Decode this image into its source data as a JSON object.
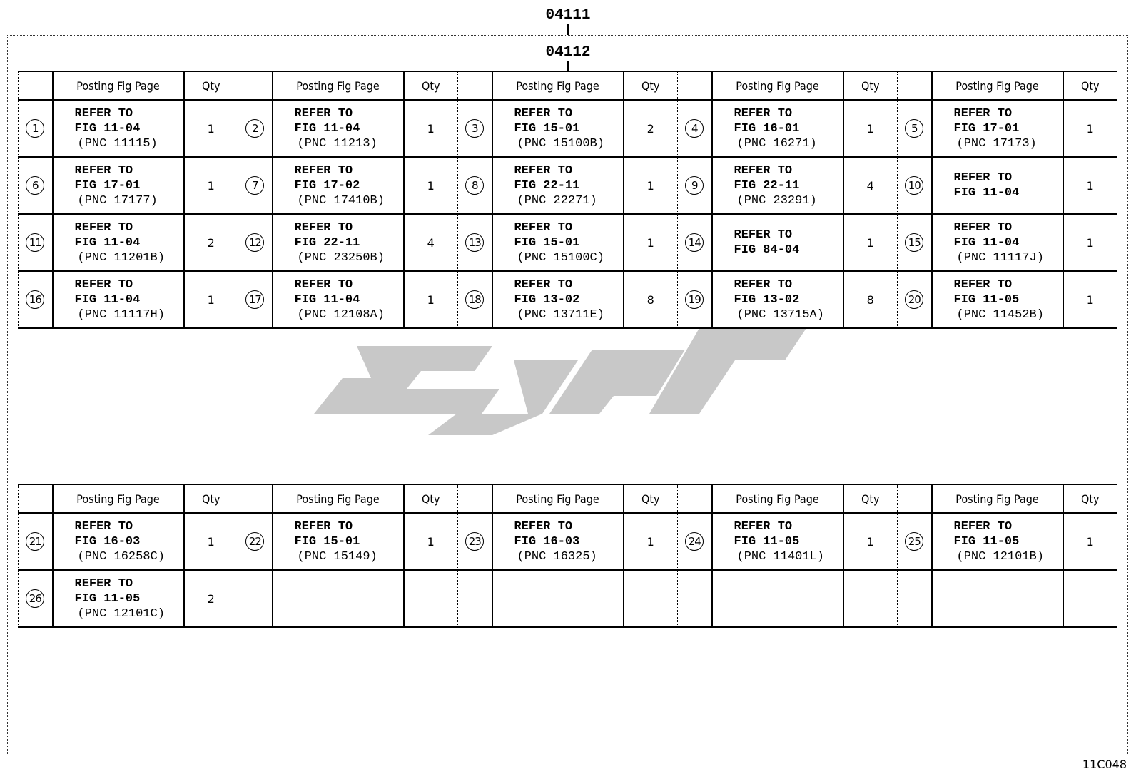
{
  "labels": {
    "top": "04111",
    "inner": "04112",
    "figure_code": "11C048"
  },
  "header": {
    "posting": "Posting Fig Page",
    "qty": "Qty"
  },
  "table1": [
    [
      {
        "n": "1",
        "l1": "REFER TO",
        "l2": "FIG 11-04",
        "l3": "(PNC 11115)",
        "q": "1"
      },
      {
        "n": "2",
        "l1": "REFER TO",
        "l2": "FIG 11-04",
        "l3": "(PNC 11213)",
        "q": "1"
      },
      {
        "n": "3",
        "l1": "REFER TO",
        "l2": "FIG 15-01",
        "l3": "(PNC 15100B)",
        "q": "2"
      },
      {
        "n": "4",
        "l1": "REFER TO",
        "l2": "FIG 16-01",
        "l3": "(PNC 16271)",
        "q": "1"
      },
      {
        "n": "5",
        "l1": "REFER TO",
        "l2": "FIG 17-01",
        "l3": "(PNC 17173)",
        "q": "1"
      }
    ],
    [
      {
        "n": "6",
        "l1": "REFER TO",
        "l2": "FIG 17-01",
        "l3": "(PNC 17177)",
        "q": "1"
      },
      {
        "n": "7",
        "l1": "REFER TO",
        "l2": "FIG 17-02",
        "l3": "(PNC 17410B)",
        "q": "1"
      },
      {
        "n": "8",
        "l1": "REFER TO",
        "l2": "FIG 22-11",
        "l3": "(PNC 22271)",
        "q": "1"
      },
      {
        "n": "9",
        "l1": "REFER TO",
        "l2": "FIG 22-11",
        "l3": "(PNC 23291)",
        "q": "4"
      },
      {
        "n": "10",
        "l1": "REFER TO",
        "l2": "FIG 11-04",
        "l3": "",
        "q": "1"
      }
    ],
    [
      {
        "n": "11",
        "l1": "REFER TO",
        "l2": "FIG 11-04",
        "l3": "(PNC 11201B)",
        "q": "2"
      },
      {
        "n": "12",
        "l1": "REFER TO",
        "l2": "FIG 22-11",
        "l3": "(PNC 23250B)",
        "q": "4"
      },
      {
        "n": "13",
        "l1": "REFER TO",
        "l2": "FIG 15-01",
        "l3": "(PNC 15100C)",
        "q": "1"
      },
      {
        "n": "14",
        "l1": "REFER TO",
        "l2": "FIG 84-04",
        "l3": "",
        "q": "1"
      },
      {
        "n": "15",
        "l1": "REFER TO",
        "l2": "FIG 11-04",
        "l3": "(PNC 11117J)",
        "q": "1"
      }
    ],
    [
      {
        "n": "16",
        "l1": "REFER TO",
        "l2": "FIG 11-04",
        "l3": "(PNC 11117H)",
        "q": "1"
      },
      {
        "n": "17",
        "l1": "REFER TO",
        "l2": "FIG 11-04",
        "l3": "(PNC 12108A)",
        "q": "1"
      },
      {
        "n": "18",
        "l1": "REFER TO",
        "l2": "FIG 13-02",
        "l3": "(PNC 13711E)",
        "q": "8"
      },
      {
        "n": "19",
        "l1": "REFER TO",
        "l2": "FIG 13-02",
        "l3": "(PNC 13715A)",
        "q": "8"
      },
      {
        "n": "20",
        "l1": "REFER TO",
        "l2": "FIG 11-05",
        "l3": "(PNC 11452B)",
        "q": "1"
      }
    ]
  ],
  "table2": [
    [
      {
        "n": "21",
        "l1": "REFER TO",
        "l2": "FIG 16-03",
        "l3": "(PNC 16258C)",
        "q": "1"
      },
      {
        "n": "22",
        "l1": "REFER TO",
        "l2": "FIG 15-01",
        "l3": "(PNC 15149)",
        "q": "1"
      },
      {
        "n": "23",
        "l1": "REFER TO",
        "l2": "FIG 16-03",
        "l3": "(PNC 16325)",
        "q": "1"
      },
      {
        "n": "24",
        "l1": "REFER TO",
        "l2": "FIG 11-05",
        "l3": "(PNC 11401L)",
        "q": "1"
      },
      {
        "n": "25",
        "l1": "REFER TO",
        "l2": "FIG 11-05",
        "l3": "(PNC 12101B)",
        "q": "1"
      }
    ],
    [
      {
        "n": "26",
        "l1": "REFER TO",
        "l2": "FIG 11-05",
        "l3": "(PNC 12101C)",
        "q": "2"
      },
      null,
      null,
      null,
      null
    ]
  ],
  "colors": {
    "line": "#000000",
    "watermark": "#c8c8c8"
  }
}
